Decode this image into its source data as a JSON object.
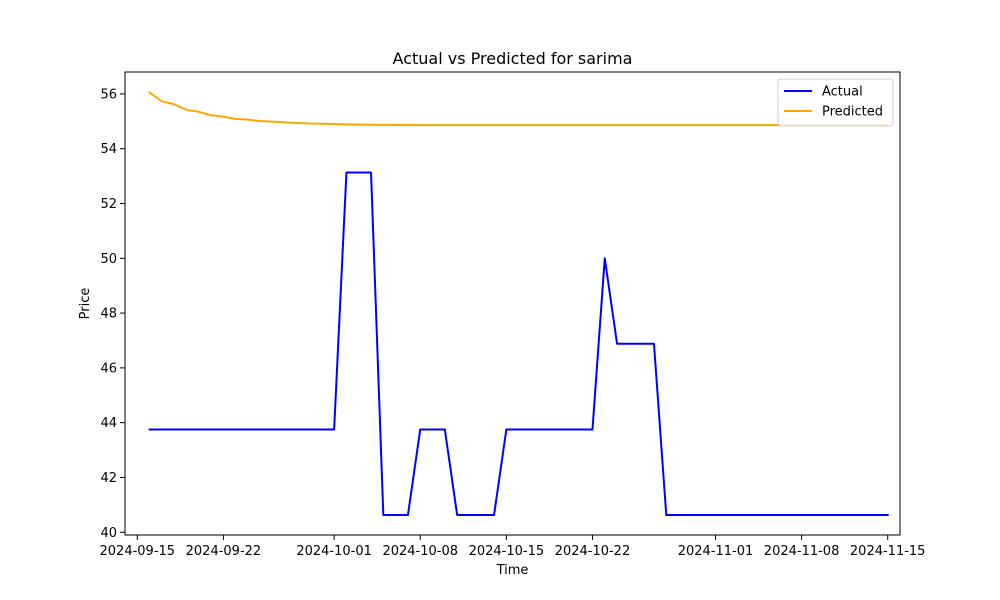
{
  "chart_data": {
    "type": "line",
    "title": "Actual vs Predicted for sarima",
    "xlabel": "Time",
    "ylabel": "Price",
    "x_axis_type": "date",
    "xlim": [
      "2024-09-14",
      "2024-11-16"
    ],
    "ylim": [
      39.9,
      56.8
    ],
    "x_ticks": [
      "2024-09-15",
      "2024-09-22",
      "2024-10-01",
      "2024-10-08",
      "2024-10-15",
      "2024-10-22",
      "2024-11-01",
      "2024-11-08",
      "2024-11-15"
    ],
    "y_ticks": [
      40,
      42,
      44,
      46,
      48,
      50,
      52,
      54,
      56
    ],
    "grid": false,
    "legend_position": "top-right",
    "series": [
      {
        "name": "Actual",
        "color": "#0000ff",
        "points": [
          [
            "2024-09-16",
            43.75
          ],
          [
            "2024-10-01",
            43.75
          ],
          [
            "2024-10-02",
            53.13
          ],
          [
            "2024-10-04",
            53.13
          ],
          [
            "2024-10-05",
            40.63
          ],
          [
            "2024-10-07",
            40.63
          ],
          [
            "2024-10-08",
            43.75
          ],
          [
            "2024-10-10",
            43.75
          ],
          [
            "2024-10-11",
            40.63
          ],
          [
            "2024-10-14",
            40.63
          ],
          [
            "2024-10-15",
            43.75
          ],
          [
            "2024-10-22",
            43.75
          ],
          [
            "2024-10-23",
            50.0
          ],
          [
            "2024-10-24",
            46.88
          ],
          [
            "2024-10-27",
            46.88
          ],
          [
            "2024-10-28",
            40.63
          ],
          [
            "2024-11-15",
            40.63
          ]
        ]
      },
      {
        "name": "Predicted",
        "color": "#ffa500",
        "points": [
          [
            "2024-09-16",
            56.05
          ],
          [
            "2024-09-17",
            55.73
          ],
          [
            "2024-09-18",
            55.62
          ],
          [
            "2024-09-19",
            55.42
          ],
          [
            "2024-09-20",
            55.35
          ],
          [
            "2024-09-21",
            55.22
          ],
          [
            "2024-09-22",
            55.17
          ],
          [
            "2024-09-23",
            55.09
          ],
          [
            "2024-09-24",
            55.06
          ],
          [
            "2024-09-25",
            55.01
          ],
          [
            "2024-09-26",
            54.99
          ],
          [
            "2024-09-27",
            54.96
          ],
          [
            "2024-09-28",
            54.94
          ],
          [
            "2024-09-29",
            54.92
          ],
          [
            "2024-09-30",
            54.91
          ],
          [
            "2024-10-01",
            54.9
          ],
          [
            "2024-10-02",
            54.89
          ],
          [
            "2024-10-03",
            54.88
          ],
          [
            "2024-10-05",
            54.87
          ],
          [
            "2024-10-08",
            54.86
          ],
          [
            "2024-10-15",
            54.86
          ],
          [
            "2024-11-15",
            54.86
          ]
        ]
      }
    ]
  }
}
